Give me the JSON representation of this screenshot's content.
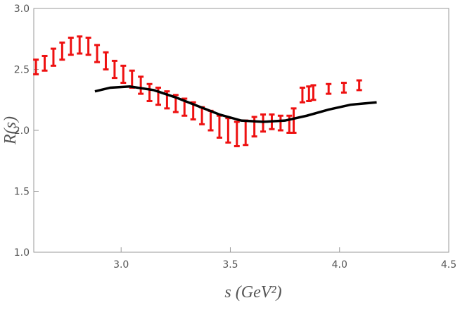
{
  "chart_data": {
    "type": "errorbar",
    "xlabel": "s (GeV²)",
    "ylabel": "R(s)",
    "xlim": [
      2.6,
      4.5
    ],
    "ylim": [
      1.0,
      3.0
    ],
    "xticks": [
      {
        "value": 3,
        "label": "3.0"
      },
      3.5,
      {
        "value": 4,
        "label": "4.0"
      },
      4.5
    ],
    "yticks": [
      {
        "value": 1,
        "label": "1.0"
      },
      1.5,
      {
        "value": 2,
        "label": "2.0"
      },
      2.5,
      {
        "value": 3,
        "label": "3.0"
      }
    ],
    "series": [
      {
        "type": "errorbar",
        "color": "#ee1111",
        "x": [
          2.61,
          2.65,
          2.69,
          2.73,
          2.77,
          2.81,
          2.85,
          2.89,
          2.93,
          2.97,
          3.01,
          3.05,
          3.09,
          3.13,
          3.17,
          3.21,
          3.25,
          3.29,
          3.33,
          3.37,
          3.41,
          3.45,
          3.49,
          3.53,
          3.57,
          3.61,
          3.65,
          3.69,
          3.73,
          3.77,
          3.79,
          3.83,
          3.86,
          3.88,
          3.95,
          4.02,
          4.09
        ],
        "values": [
          2.52,
          2.55,
          2.6,
          2.65,
          2.69,
          2.7,
          2.69,
          2.63,
          2.57,
          2.5,
          2.46,
          2.42,
          2.37,
          2.31,
          2.28,
          2.25,
          2.22,
          2.19,
          2.16,
          2.12,
          2.08,
          2.03,
          2.0,
          1.97,
          1.98,
          2.03,
          2.06,
          2.07,
          2.06,
          2.05,
          2.08,
          2.29,
          2.3,
          2.31,
          2.34,
          2.35,
          2.37
        ],
        "errors": [
          0.06,
          0.06,
          0.07,
          0.07,
          0.07,
          0.07,
          0.07,
          0.07,
          0.07,
          0.07,
          0.07,
          0.07,
          0.07,
          0.07,
          0.07,
          0.07,
          0.07,
          0.07,
          0.07,
          0.07,
          0.08,
          0.09,
          0.1,
          0.1,
          0.1,
          0.08,
          0.07,
          0.06,
          0.06,
          0.07,
          0.1,
          0.06,
          0.06,
          0.06,
          0.04,
          0.04,
          0.04
        ]
      },
      {
        "type": "line",
        "color": "#000000",
        "x": [
          2.88,
          2.95,
          3.04,
          3.15,
          3.25,
          3.35,
          3.45,
          3.55,
          3.65,
          3.75,
          3.85,
          3.95,
          4.05,
          4.17
        ],
        "values": [
          2.32,
          2.35,
          2.36,
          2.33,
          2.27,
          2.2,
          2.13,
          2.08,
          2.07,
          2.08,
          2.12,
          2.17,
          2.21,
          2.23
        ]
      }
    ]
  }
}
